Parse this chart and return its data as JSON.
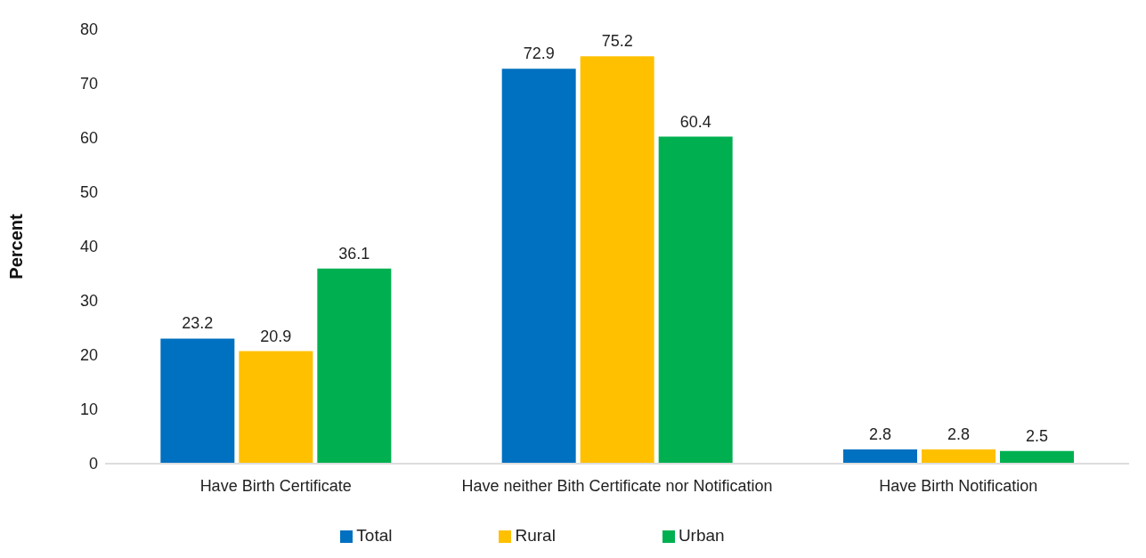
{
  "chart_data": {
    "type": "bar",
    "ylabel": "Percent",
    "categories": [
      "Have Birth Certificate",
      "Have neither Bith Certificate nor Notification",
      "Have Birth Notification"
    ],
    "series": [
      {
        "name": "Total",
        "color": "#0070c0",
        "values": [
          23.2,
          72.9,
          2.8
        ]
      },
      {
        "name": "Rural",
        "color": "#ffc000",
        "values": [
          20.9,
          75.2,
          2.8
        ]
      },
      {
        "name": "Urban",
        "color": "#00b050",
        "values": [
          36.1,
          60.4,
          2.5
        ]
      }
    ],
    "ylim": [
      0,
      80
    ],
    "yticks": [
      0,
      10,
      20,
      30,
      40,
      50,
      60,
      70,
      80
    ],
    "grid": false,
    "legend": "bottom",
    "data_labels": true
  }
}
